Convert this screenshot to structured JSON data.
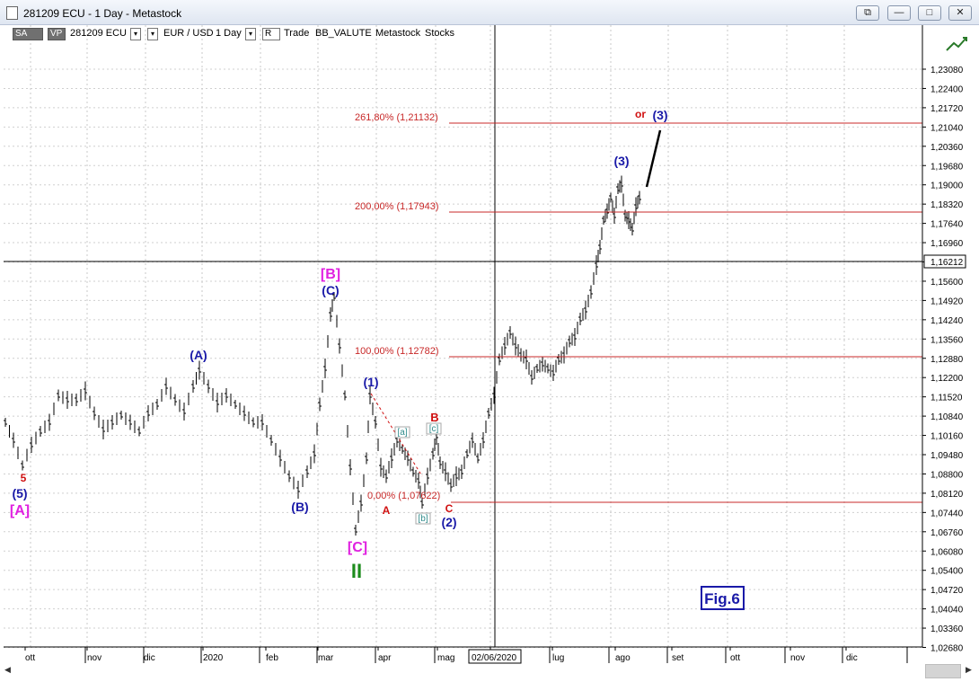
{
  "window": {
    "title": "281209 ECU - 1 Day - Metastock",
    "buttons": {
      "restore_label": "⧉",
      "minimize_label": "—",
      "maximize_label": "□",
      "close_label": "✕"
    }
  },
  "toolbar": {
    "sa_label": "SA",
    "vp_label": "VP",
    "symbol": "281209 ECU",
    "pair": "EUR / USD",
    "period": "1 Day",
    "r_label": "R",
    "trade_label": "Trade",
    "bb_label": "BB_VALUTE",
    "metastock_label": "Metastock",
    "stocks_label": "Stocks",
    "dropdown_glyph": "▾"
  },
  "chart": {
    "price_labels": [
      "1,23080",
      "1,22400",
      "1,21720",
      "1,21040",
      "1,20360",
      "1,19680",
      "1,19000",
      "1,18320",
      "1,17640",
      "1,16960",
      "1,16280",
      "1,15600",
      "1,14920",
      "1,14240",
      "1,13560",
      "1,12880",
      "1,12200",
      "1,11520",
      "1,10840",
      "1,10160",
      "1,09480",
      "1,08800",
      "1,08120",
      "1,07440",
      "1,06760",
      "1,06080",
      "1,05400",
      "1,04720",
      "1,04040",
      "1,03360",
      "1,02680"
    ],
    "current_price": "1,16212",
    "date_labels": [
      "ott",
      "nov",
      "dic",
      "2020",
      "feb",
      "mar",
      "apr",
      "mag",
      "lug",
      "ago",
      "set",
      "ott",
      "nov",
      "dic"
    ],
    "cursor_date": "02/06/2020",
    "fib_labels": {
      "f261": "261,80% (1,21132)",
      "f200": "200,00% (1,17943)",
      "f100": "100,00% (1,12782)",
      "f0": "0,00% (1,07622)"
    },
    "wave_labels": {
      "w5_red": "5",
      "w5": "(5)",
      "wA_sq": "[A]",
      "wA": "(A)",
      "wB": "(B)",
      "wB_sq": "[B]",
      "wC": "(C)",
      "wC_sq": "[C]",
      "wII": "II",
      "w1": "(1)",
      "w2": "(2)",
      "w3": "(3)",
      "w3_alt": "(3)",
      "or": "or",
      "a_red": "A",
      "b_red": "B",
      "c_red": "C",
      "a_small": "[a]",
      "b_small": "[b]",
      "c_small": "[c]"
    },
    "fig_label": "Fig.6",
    "colors": {
      "blue": "#1a1aa8",
      "red": "#d01010",
      "magenta": "#e020e0",
      "green": "#1c8c1c",
      "teal": "#2e8a8a",
      "fib": "#c82828"
    }
  }
}
